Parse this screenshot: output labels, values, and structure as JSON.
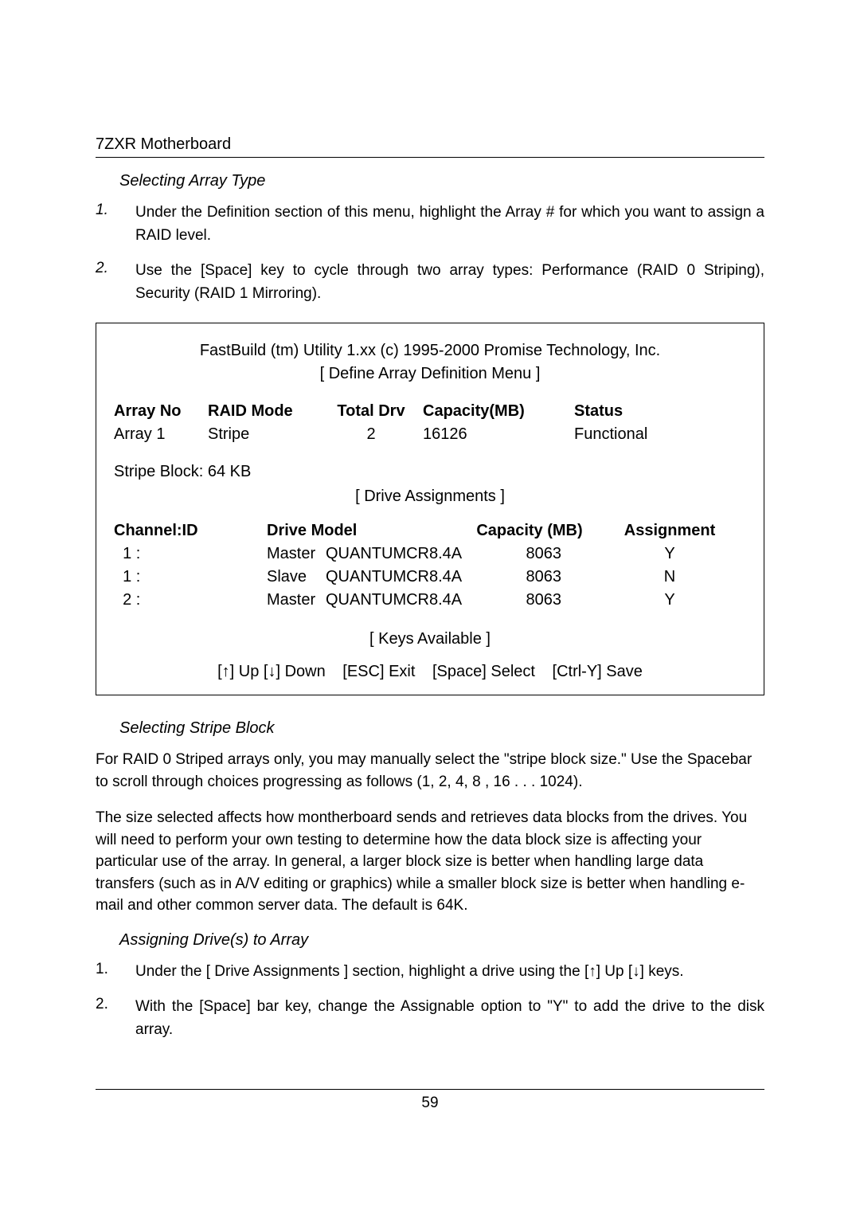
{
  "header": {
    "title": "7ZXR Motherboard"
  },
  "sectionA": {
    "heading": "Selecting Array Type",
    "items": [
      {
        "num": "1.",
        "text": "Under the Definition section of this menu, highlight the Array # for which you want to assign a RAID level."
      },
      {
        "num": "2.",
        "text": "Use the [Space] key to cycle through two array types:   Performance (RAID 0 Striping), Security   (RAID 1 Mirroring)."
      }
    ]
  },
  "bios": {
    "title1": "FastBuild (tm) Utility 1.xx (c) 1995-2000 Promise Technology, Inc.",
    "title2": "[ Define Array Definition Menu ]",
    "arrayHeader": {
      "c1": "Array No",
      "c2": "RAID Mode",
      "c3": "Total Drv",
      "c4": "Capacity(MB)",
      "c5": "Status"
    },
    "arrayRow": {
      "c1": "Array 1",
      "c2": "Stripe",
      "c3": "2",
      "c4": "16126",
      "c5": "Functional"
    },
    "stripeBlockLabel": "Stripe Block:  64 KB",
    "driveAssignTitle": "[ Drive Assignments ]",
    "driveHeader": {
      "d1": "Channel:ID",
      "d2": "Drive Model",
      "d3": "Capacity (MB)",
      "d4": "Assignment"
    },
    "driveRows": [
      {
        "d1": "  1 :",
        "d2a": "Master",
        "d2b": "QUANTUMCR8.4A",
        "d3": "8063",
        "d4": "Y"
      },
      {
        "d1": "  1 :",
        "d2a": "Slave",
        "d2b": "QUANTUMCR8.4A",
        "d3": "8063",
        "d4": "N"
      },
      {
        "d1": "  2 :",
        "d2a": "Master",
        "d2b": "QUANTUMCR8.4A",
        "d3": "8063",
        "d4": "Y"
      }
    ],
    "keysTitle": "[ Keys Available ]",
    "keys": {
      "up": "[↑] Up [↓] Down",
      "esc": "[ESC] Exit",
      "space": "[Space] Select",
      "save": "[Ctrl-Y] Save"
    }
  },
  "sectionB": {
    "heading": "Selecting Stripe Block",
    "para1": "For RAID 0 Striped arrays only, you may manually select the \"stripe block size.\" Use the Spacebar to scroll through choices progressing as follows (1, 2, 4, 8 , 16 . . . 1024).",
    "para2": "The size selected affects how montherboard sends and retrieves data blocks from the drives. You will need to perform your own testing to determine how the data block size is affecting your particular use of the array. In general, a larger block size is better when handling large data transfers (such as in A/V editing or graphics) while a smaller block size is better when handling e-mail and other common server data. The default is 64K."
  },
  "sectionC": {
    "heading": "Assigning Drive(s) to Array",
    "items": [
      {
        "num": "1.",
        "text": "Under the [ Drive Assignments ] section, highlight a drive using the [↑] Up [↓] keys."
      },
      {
        "num": "2.",
        "text": "With the [Space] bar key, change the Assignable option to \"Y\" to add the drive to the disk array."
      }
    ]
  },
  "footer": {
    "pageNum": "59"
  }
}
